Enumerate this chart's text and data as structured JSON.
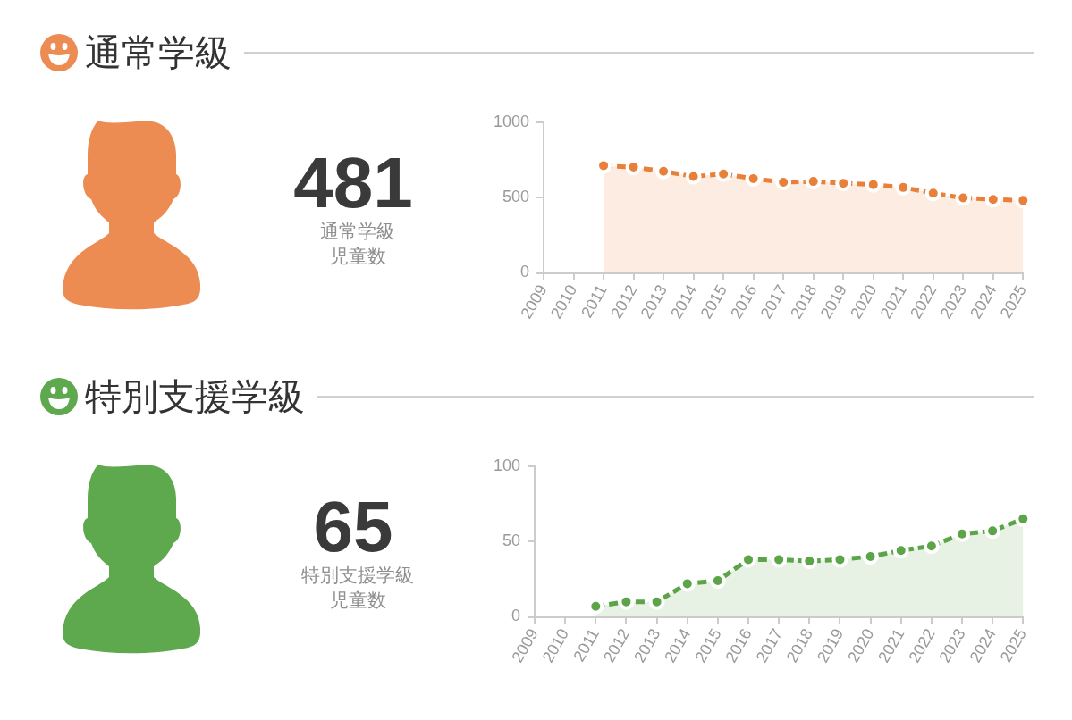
{
  "chart_data": [
    {
      "type": "other",
      "title": "通常学級",
      "annotations": [
        "481",
        "通常学級",
        "児童数"
      ],
      "color": "#ec8b52"
    },
    {
      "type": "area",
      "categories": [
        "2009",
        "2010",
        "2011",
        "2012",
        "2013",
        "2014",
        "2015",
        "2016",
        "2017",
        "2018",
        "2019",
        "2020",
        "2021",
        "2022",
        "2023",
        "2024",
        "2025"
      ],
      "values": [
        null,
        null,
        712,
        702,
        674,
        640,
        657,
        626,
        602,
        607,
        595,
        586,
        567,
        529,
        498,
        488,
        481
      ],
      "color": "#e9803a",
      "ylim": [
        0,
        1000
      ],
      "yticks": [
        0,
        500,
        1000
      ],
      "marker": "circle",
      "line_style": "dashed"
    },
    {
      "type": "other",
      "title": "特別支援学級",
      "annotations": [
        "65",
        "特別支援学級",
        "児童数"
      ],
      "color": "#5ea84e"
    },
    {
      "type": "area",
      "categories": [
        "2009",
        "2010",
        "2011",
        "2012",
        "2013",
        "2014",
        "2015",
        "2016",
        "2017",
        "2018",
        "2019",
        "2020",
        "2021",
        "2022",
        "2023",
        "2024",
        "2025"
      ],
      "values": [
        null,
        null,
        7,
        10,
        10,
        22,
        24,
        38,
        38,
        37,
        38,
        40,
        44,
        47,
        55,
        57,
        65
      ],
      "color": "#5ba447",
      "ylim": [
        0,
        100
      ],
      "yticks": [
        0,
        50,
        100
      ],
      "marker": "circle",
      "line_style": "dashed"
    }
  ]
}
